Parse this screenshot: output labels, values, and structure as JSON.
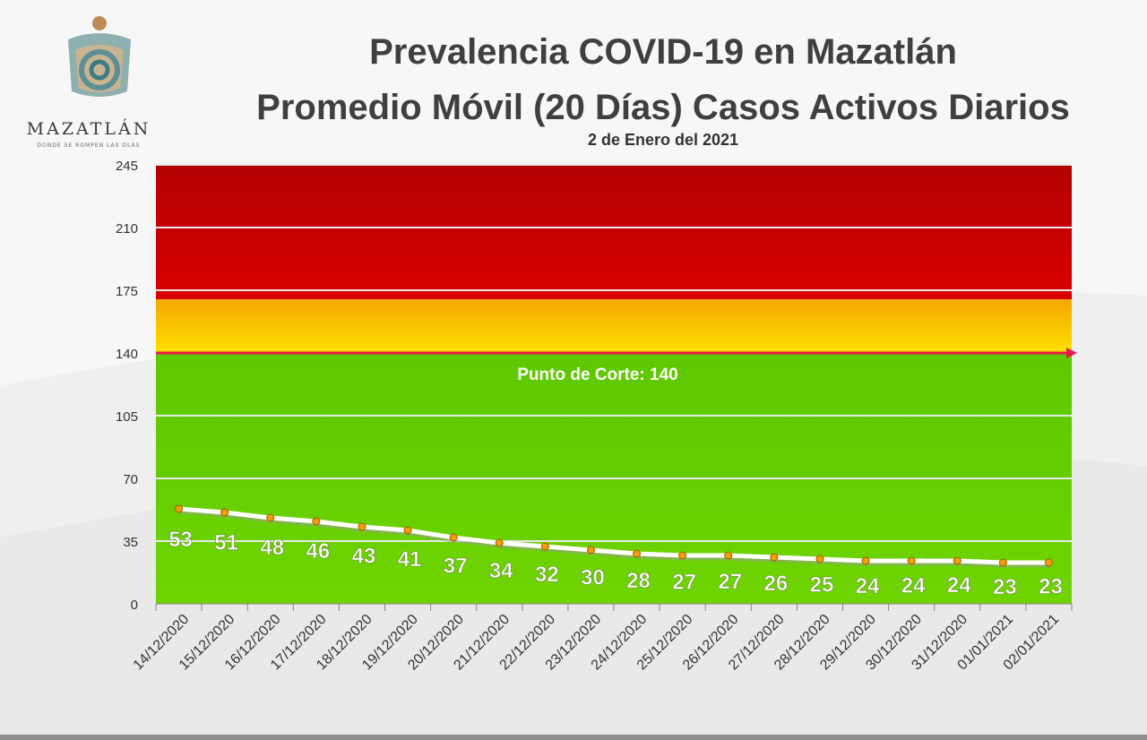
{
  "logo": {
    "wordmark": "MAZATLÁN",
    "tagline": "DONDE SE ROMPEN LAS OLAS"
  },
  "header": {
    "title_line1": "Prevalencia COVID-19 en Mazatlán",
    "title_line2": "Promedio Móvil (20 Días) Casos Activos Diarios",
    "date": "2 de Enero del 2021"
  },
  "chart_data": {
    "type": "line",
    "categories": [
      "14/12/2020",
      "15/12/2020",
      "16/12/2020",
      "17/12/2020",
      "18/12/2020",
      "19/12/2020",
      "20/12/2020",
      "21/12/2020",
      "22/12/2020",
      "23/12/2020",
      "24/12/2020",
      "25/12/2020",
      "26/12/2020",
      "27/12/2020",
      "28/12/2020",
      "29/12/2020",
      "30/12/2020",
      "31/12/2020",
      "01/01/2021",
      "02/01/2021"
    ],
    "values": [
      53,
      51,
      48,
      46,
      43,
      41,
      37,
      34,
      32,
      30,
      28,
      27,
      27,
      26,
      25,
      24,
      24,
      24,
      23,
      23
    ],
    "yticks": [
      0,
      35,
      70,
      105,
      140,
      175,
      210,
      245
    ],
    "ylim": [
      0,
      245
    ],
    "grid": true,
    "zones": [
      {
        "from": 0,
        "to": 140,
        "color": "#66cc00"
      },
      {
        "from": 140,
        "to": 170,
        "color": "#f5c200"
      },
      {
        "from": 170,
        "to": 245,
        "color": "#c00000"
      }
    ],
    "cutoff": {
      "value": 140,
      "label": "Punto de Corte: 140",
      "color": "#e6194b"
    },
    "line_color": "#ffffff",
    "marker_color": "#f0a000"
  }
}
